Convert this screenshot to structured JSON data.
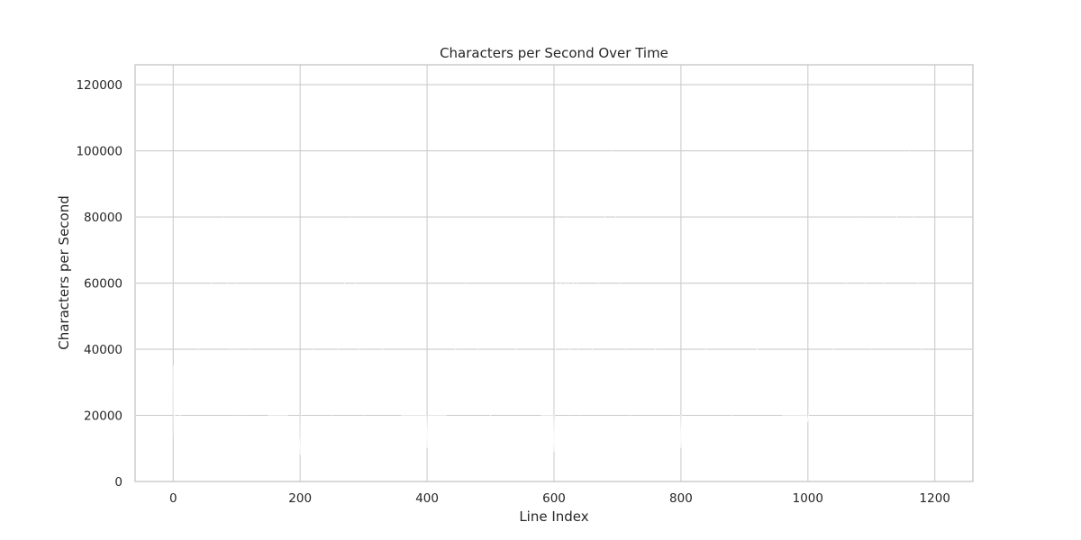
{
  "chart_data": {
    "type": "line",
    "title": "Characters per Second Over Time",
    "xlabel": "Line Index",
    "ylabel": "Characters per Second",
    "xlim": [
      -60,
      1260
    ],
    "ylim": [
      0,
      126000
    ],
    "xticks": [
      0,
      200,
      400,
      600,
      800,
      1000,
      1200
    ],
    "xtick_labels": [
      "0",
      "200",
      "400",
      "600",
      "800",
      "1000",
      "1200"
    ],
    "yticks": [
      0,
      20000,
      40000,
      60000,
      80000,
      100000,
      120000
    ],
    "ytick_labels": [
      "0",
      "20000",
      "40000",
      "60000",
      "80000",
      "100000",
      "120000"
    ],
    "grid": true,
    "series_color": "#ffffff",
    "grid_color": "#cccccc",
    "series": [
      {
        "x": [
          0,
          1,
          2,
          3,
          5,
          10,
          20,
          40,
          60,
          80,
          95,
          100,
          105,
          120,
          150,
          180,
          199,
          200,
          201,
          220,
          250,
          280,
          300,
          330,
          360,
          399,
          400,
          401,
          430,
          460,
          500,
          540,
          580,
          599,
          600,
          601,
          605,
          610,
          615,
          620,
          625,
          630,
          635,
          640,
          660,
          690,
          720,
          760,
          799,
          800,
          801,
          840,
          880,
          920,
          960,
          999,
          1000,
          1001,
          1040,
          1080,
          1100,
          1120,
          1140,
          1160,
          1180,
          1199
        ],
        "y": [
          35000,
          13000,
          30000,
          20000,
          22000,
          20000,
          21000,
          40000,
          60000,
          80000,
          20000,
          60000,
          20000,
          40000,
          20000,
          20000,
          13000,
          8000,
          20000,
          40000,
          20000,
          80000,
          20000,
          40000,
          20000,
          20000,
          10000,
          20000,
          20000,
          60000,
          20000,
          40000,
          20000,
          20000,
          9000,
          20000,
          80000,
          60000,
          40000,
          80000,
          20000,
          60000,
          80000,
          20000,
          40000,
          100000,
          20000,
          40000,
          20000,
          10000,
          20000,
          40000,
          20000,
          40000,
          20000,
          20000,
          18000,
          20000,
          40000,
          80000,
          40000,
          60000,
          80000,
          100000,
          40000,
          20000
        ]
      }
    ]
  }
}
